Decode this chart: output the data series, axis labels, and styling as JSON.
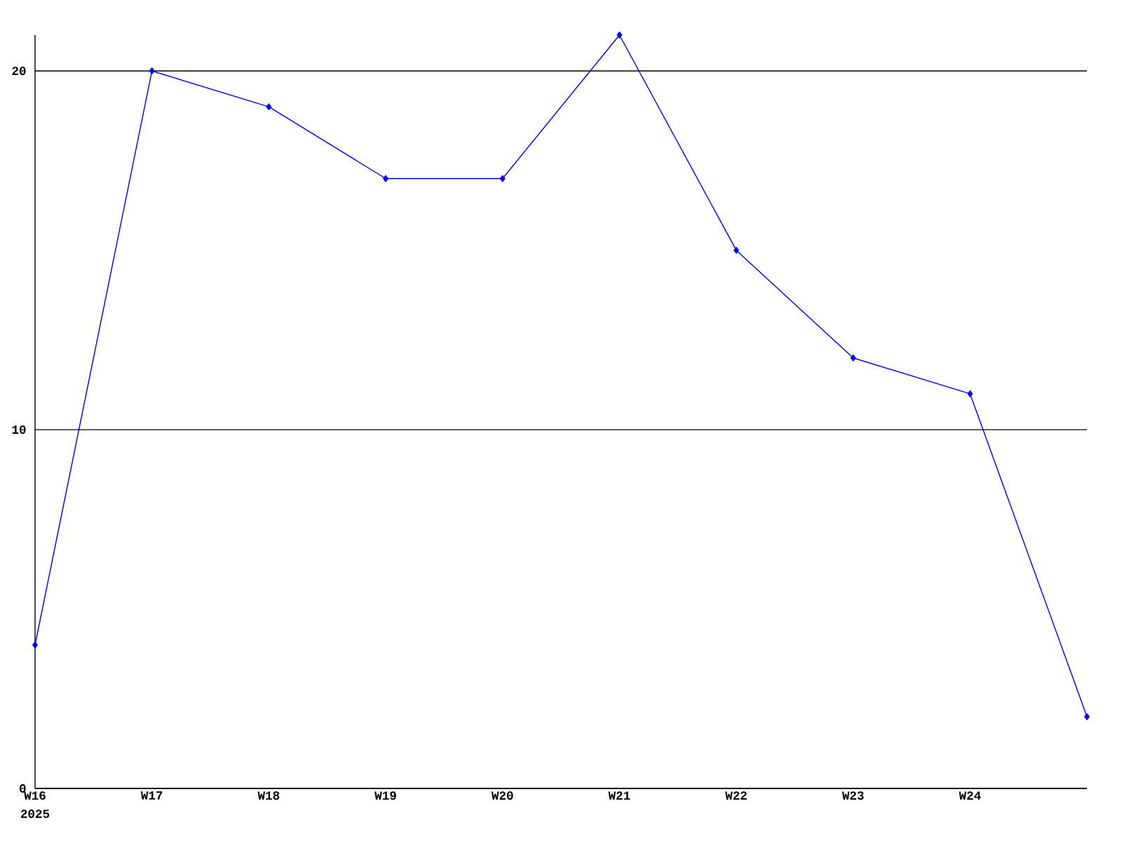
{
  "chart_data": {
    "type": "line",
    "categories": [
      "W16",
      "W17",
      "W18",
      "W19",
      "W20",
      "W21",
      "W22",
      "W23",
      "W24",
      null
    ],
    "series": [
      {
        "color": "#0000ff",
        "values": [
          4,
          20,
          19,
          17,
          17,
          21,
          15,
          12,
          11,
          2
        ]
      }
    ],
    "ylim": [
      0,
      21
    ],
    "yticks": [
      0,
      10,
      20
    ],
    "grid": "y",
    "marker": "diamond",
    "line_style": "solid",
    "annotations": [
      "2025"
    ]
  }
}
